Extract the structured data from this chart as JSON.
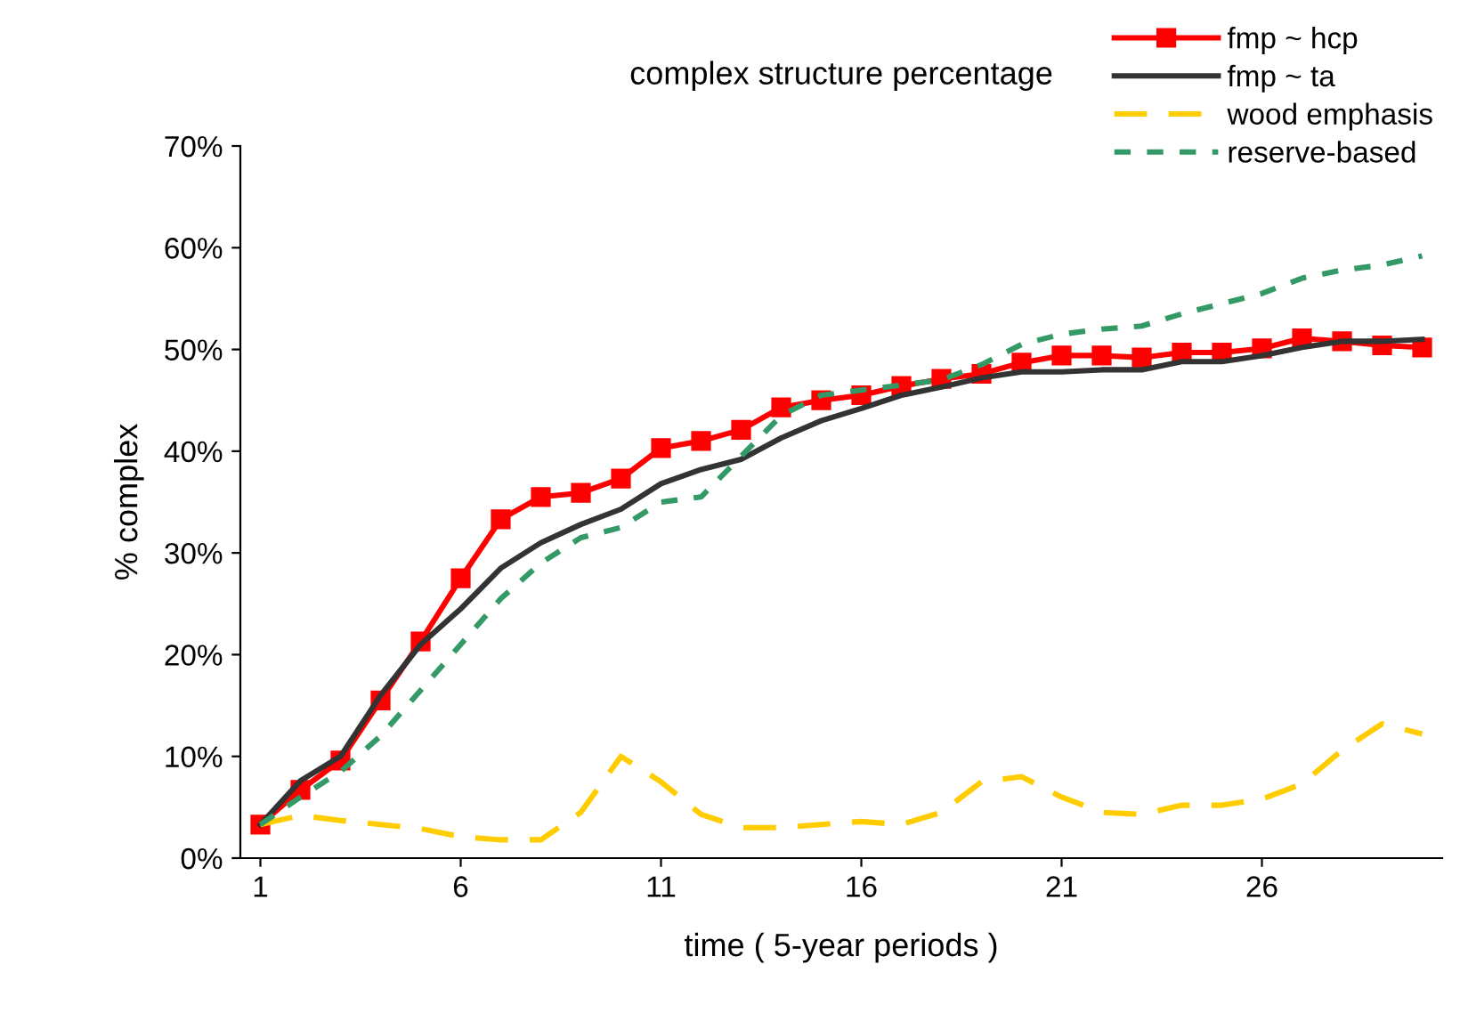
{
  "chart_data": {
    "type": "line",
    "title": "complex structure percentage",
    "xlabel": "time ( 5-year periods )",
    "ylabel": "% complex",
    "x": [
      1,
      2,
      3,
      4,
      5,
      6,
      7,
      8,
      9,
      10,
      11,
      12,
      13,
      14,
      15,
      16,
      17,
      18,
      19,
      20,
      21,
      22,
      23,
      24,
      25,
      26,
      27,
      28,
      29,
      30
    ],
    "xlim": [
      0.5,
      30.5
    ],
    "xticks": [
      1,
      6,
      11,
      16,
      21,
      26
    ],
    "ylim": [
      0,
      70
    ],
    "yticks": [
      {
        "value": 0,
        "label": "0%"
      },
      {
        "value": 10,
        "label": "10%"
      },
      {
        "value": 20,
        "label": "20%"
      },
      {
        "value": 30,
        "label": "30%"
      },
      {
        "value": 40,
        "label": "40%"
      },
      {
        "value": 50,
        "label": "50%"
      },
      {
        "value": 60,
        "label": "60%"
      },
      {
        "value": 70,
        "label": "70%"
      }
    ],
    "grid": false,
    "legend": "top right",
    "series": [
      {
        "name": "fmp ~ hcp",
        "color": "#ff0000",
        "marker": "square",
        "line_style": "solid",
        "values": [
          3.3,
          6.7,
          9.6,
          15.5,
          21.3,
          27.5,
          33.3,
          35.5,
          35.9,
          37.3,
          40.3,
          41,
          42.1,
          44.3,
          45,
          45.5,
          46.4,
          47.1,
          47.6,
          48.7,
          49.4,
          49.4,
          49.2,
          49.7,
          49.7,
          50.1,
          51.1,
          50.8,
          50.4,
          50.2
        ]
      },
      {
        "name": "fmp ~ ta",
        "color": "#333333",
        "marker": "none",
        "line_style": "solid",
        "values": [
          3.3,
          7.6,
          10,
          16,
          21,
          24.5,
          28.5,
          31,
          32.8,
          34.3,
          36.8,
          38.2,
          39.2,
          41.3,
          43,
          44.2,
          45.5,
          46.3,
          47.2,
          47.8,
          47.8,
          48,
          48,
          48.8,
          48.8,
          49.4,
          50.2,
          50.8,
          50.8,
          51
        ]
      },
      {
        "name": "wood emphasis",
        "color": "#ffcc00",
        "marker": "none",
        "line_style": "dashed",
        "values": [
          3.3,
          4.2,
          3.7,
          3.3,
          2.9,
          2.1,
          1.8,
          1.8,
          4.5,
          10,
          7.5,
          4.3,
          3,
          3,
          3.3,
          3.6,
          3.3,
          4.5,
          7.5,
          8,
          6,
          4.5,
          4.3,
          5.2,
          5.2,
          5.8,
          7.3,
          10.6,
          13.2,
          12.2
        ]
      },
      {
        "name": "reserve-based",
        "color": "#339966",
        "marker": "none",
        "line_style": "dotted",
        "values": [
          3.3,
          6,
          8.5,
          12,
          16.5,
          21,
          25.5,
          29,
          31.5,
          32.5,
          35,
          35.5,
          39.5,
          43.5,
          45.5,
          46,
          46.5,
          47,
          48.5,
          50.5,
          51.5,
          52,
          52.3,
          53.5,
          54.5,
          55.5,
          57,
          57.8,
          58.3,
          59.2
        ]
      }
    ]
  }
}
